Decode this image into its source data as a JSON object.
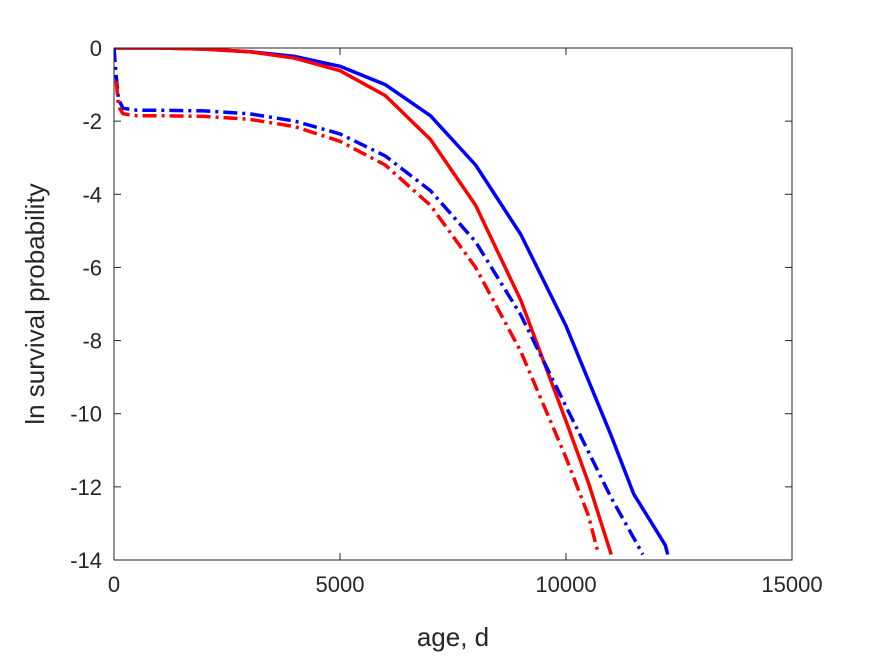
{
  "chart_data": {
    "type": "line",
    "title": "",
    "xlabel": "age, d",
    "ylabel": "ln survival probability",
    "xlim": [
      0,
      15000
    ],
    "ylim": [
      -14,
      0
    ],
    "xticks": [
      0,
      5000,
      10000,
      15000
    ],
    "yticks": [
      0,
      -2,
      -4,
      -6,
      -8,
      -10,
      -12,
      -14
    ],
    "xtick_labels": [
      "0",
      "5000",
      "10000",
      "15000"
    ],
    "ytick_labels": [
      "0",
      "-2",
      "-4",
      "-6",
      "-8",
      "-10",
      "-12",
      "-14"
    ],
    "grid": false,
    "legend": "none",
    "series": [
      {
        "color": "#0000ff",
        "style": "solid",
        "points": [
          [
            0,
            0
          ],
          [
            1000,
            0
          ],
          [
            2000,
            -0.03
          ],
          [
            3000,
            -0.1
          ],
          [
            4000,
            -0.23
          ],
          [
            5000,
            -0.5
          ],
          [
            6000,
            -1.0
          ],
          [
            7000,
            -1.85
          ],
          [
            8000,
            -3.2
          ],
          [
            9000,
            -5.1
          ],
          [
            10000,
            -7.6
          ],
          [
            11000,
            -10.6
          ],
          [
            11500,
            -12.2
          ],
          [
            12000,
            -13.2
          ],
          [
            12200,
            -13.6
          ],
          [
            12250,
            -13.85
          ]
        ]
      },
      {
        "color": "#ff0000",
        "style": "solid",
        "points": [
          [
            0,
            0
          ],
          [
            1000,
            0
          ],
          [
            2000,
            -0.03
          ],
          [
            3000,
            -0.1
          ],
          [
            4000,
            -0.28
          ],
          [
            5000,
            -0.62
          ],
          [
            6000,
            -1.3
          ],
          [
            7000,
            -2.5
          ],
          [
            8000,
            -4.3
          ],
          [
            9000,
            -6.9
          ],
          [
            10000,
            -10.2
          ],
          [
            10500,
            -11.9
          ],
          [
            11000,
            -13.85
          ]
        ]
      },
      {
        "color": "#0000ff",
        "style": "dashdot",
        "points": [
          [
            0,
            0
          ],
          [
            50,
            -0.8
          ],
          [
            100,
            -1.4
          ],
          [
            200,
            -1.65
          ],
          [
            500,
            -1.7
          ],
          [
            1000,
            -1.7
          ],
          [
            2000,
            -1.72
          ],
          [
            3000,
            -1.8
          ],
          [
            4000,
            -2.0
          ],
          [
            5000,
            -2.35
          ],
          [
            6000,
            -2.95
          ],
          [
            7000,
            -3.9
          ],
          [
            8000,
            -5.3
          ],
          [
            9000,
            -7.3
          ],
          [
            10000,
            -9.8
          ],
          [
            11000,
            -12.3
          ],
          [
            11500,
            -13.4
          ],
          [
            11700,
            -13.85
          ]
        ]
      },
      {
        "color": "#ff0000",
        "style": "dashdot",
        "points": [
          [
            50,
            -0.9
          ],
          [
            100,
            -1.6
          ],
          [
            200,
            -1.8
          ],
          [
            500,
            -1.85
          ],
          [
            1000,
            -1.85
          ],
          [
            2000,
            -1.87
          ],
          [
            3000,
            -1.95
          ],
          [
            4000,
            -2.15
          ],
          [
            5000,
            -2.55
          ],
          [
            6000,
            -3.2
          ],
          [
            7000,
            -4.3
          ],
          [
            8000,
            -6.0
          ],
          [
            9000,
            -8.3
          ],
          [
            10000,
            -11.2
          ],
          [
            10500,
            -12.8
          ],
          [
            10700,
            -13.75
          ]
        ]
      }
    ]
  }
}
